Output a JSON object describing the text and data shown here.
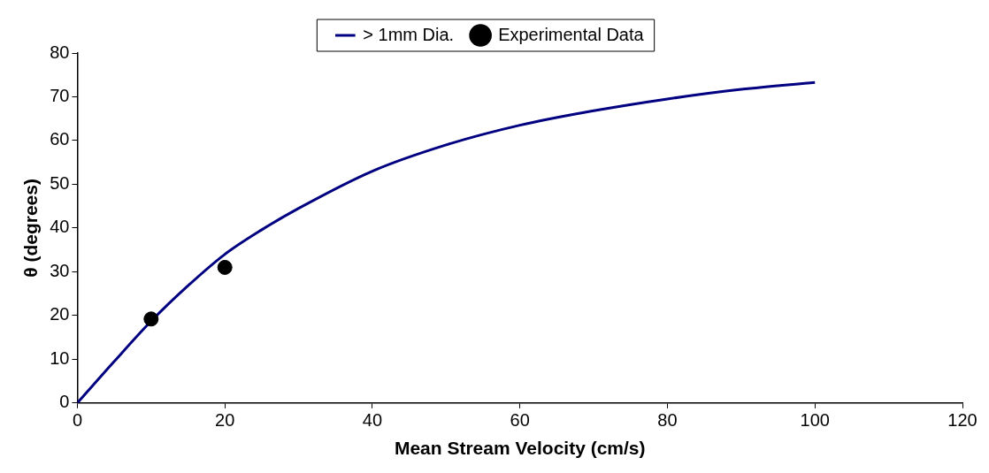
{
  "chart_data": {
    "type": "line",
    "xlabel": "Mean Stream Velocity (cm/s)",
    "ylabel": "θ (degrees)",
    "xlim": [
      0,
      120
    ],
    "xticks": [
      0,
      20,
      40,
      60,
      80,
      100,
      120
    ],
    "ylim": [
      0,
      80
    ],
    "yticks": [
      0,
      10,
      20,
      30,
      40,
      50,
      60,
      70,
      80
    ],
    "grid": false,
    "legend": "top",
    "marker": "none",
    "series": [
      {
        "name": "> 1mm Dia.",
        "color": "#000080",
        "x": [
          0,
          5,
          10,
          15,
          20,
          25,
          30,
          40,
          50,
          60,
          70,
          80,
          90,
          100
        ],
        "values": [
          0,
          9.5,
          18.7,
          26.8,
          34,
          39.6,
          44.5,
          53,
          59,
          63.5,
          66.8,
          69.5,
          71.7,
          73.3
        ]
      },
      {
        "name": "Experimental Data",
        "type": "scatter",
        "color": "#000000",
        "marker": "circle",
        "x": [
          10,
          20
        ],
        "values": [
          19.2,
          31
        ]
      }
    ]
  }
}
